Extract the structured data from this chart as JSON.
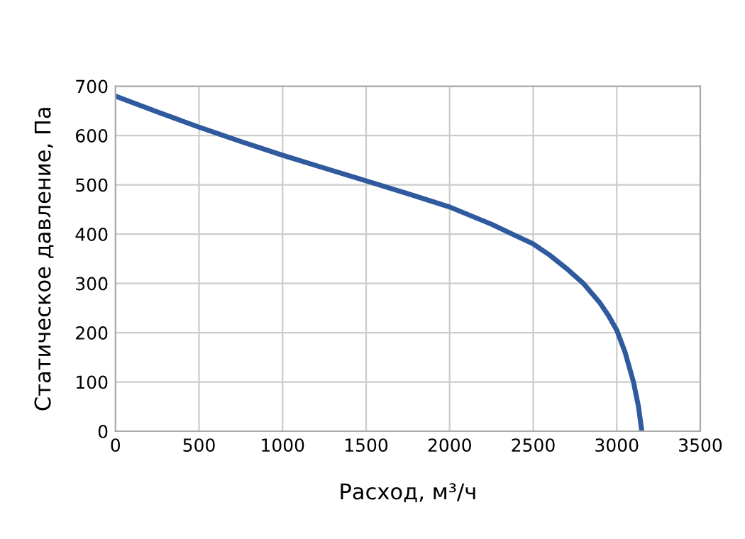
{
  "chart_data": {
    "type": "line",
    "xlabel": "Расход, м³/ч",
    "ylabel": "Статическое давление, Па",
    "series": [
      {
        "color": "#2f5a9e",
        "x": [
          0,
          250,
          500,
          750,
          1000,
          1250,
          1500,
          1750,
          2000,
          2250,
          2400,
          2500,
          2600,
          2700,
          2800,
          2900,
          2950,
          3000,
          3050,
          3100,
          3130,
          3150
        ],
        "values": [
          680,
          648,
          617,
          588,
          560,
          534,
          508,
          482,
          455,
          420,
          396,
          380,
          357,
          330,
          300,
          260,
          235,
          205,
          160,
          100,
          50,
          0
        ]
      }
    ],
    "xlim": [
      0,
      3500
    ],
    "xticks": [
      0,
      500,
      1000,
      1500,
      2000,
      2500,
      3000,
      3500
    ],
    "ylim": [
      0,
      700
    ],
    "yticks": [
      0,
      100,
      200,
      300,
      400,
      500,
      600,
      700
    ],
    "grid": true,
    "legend": false,
    "marker": "none",
    "line_style": "solid"
  }
}
